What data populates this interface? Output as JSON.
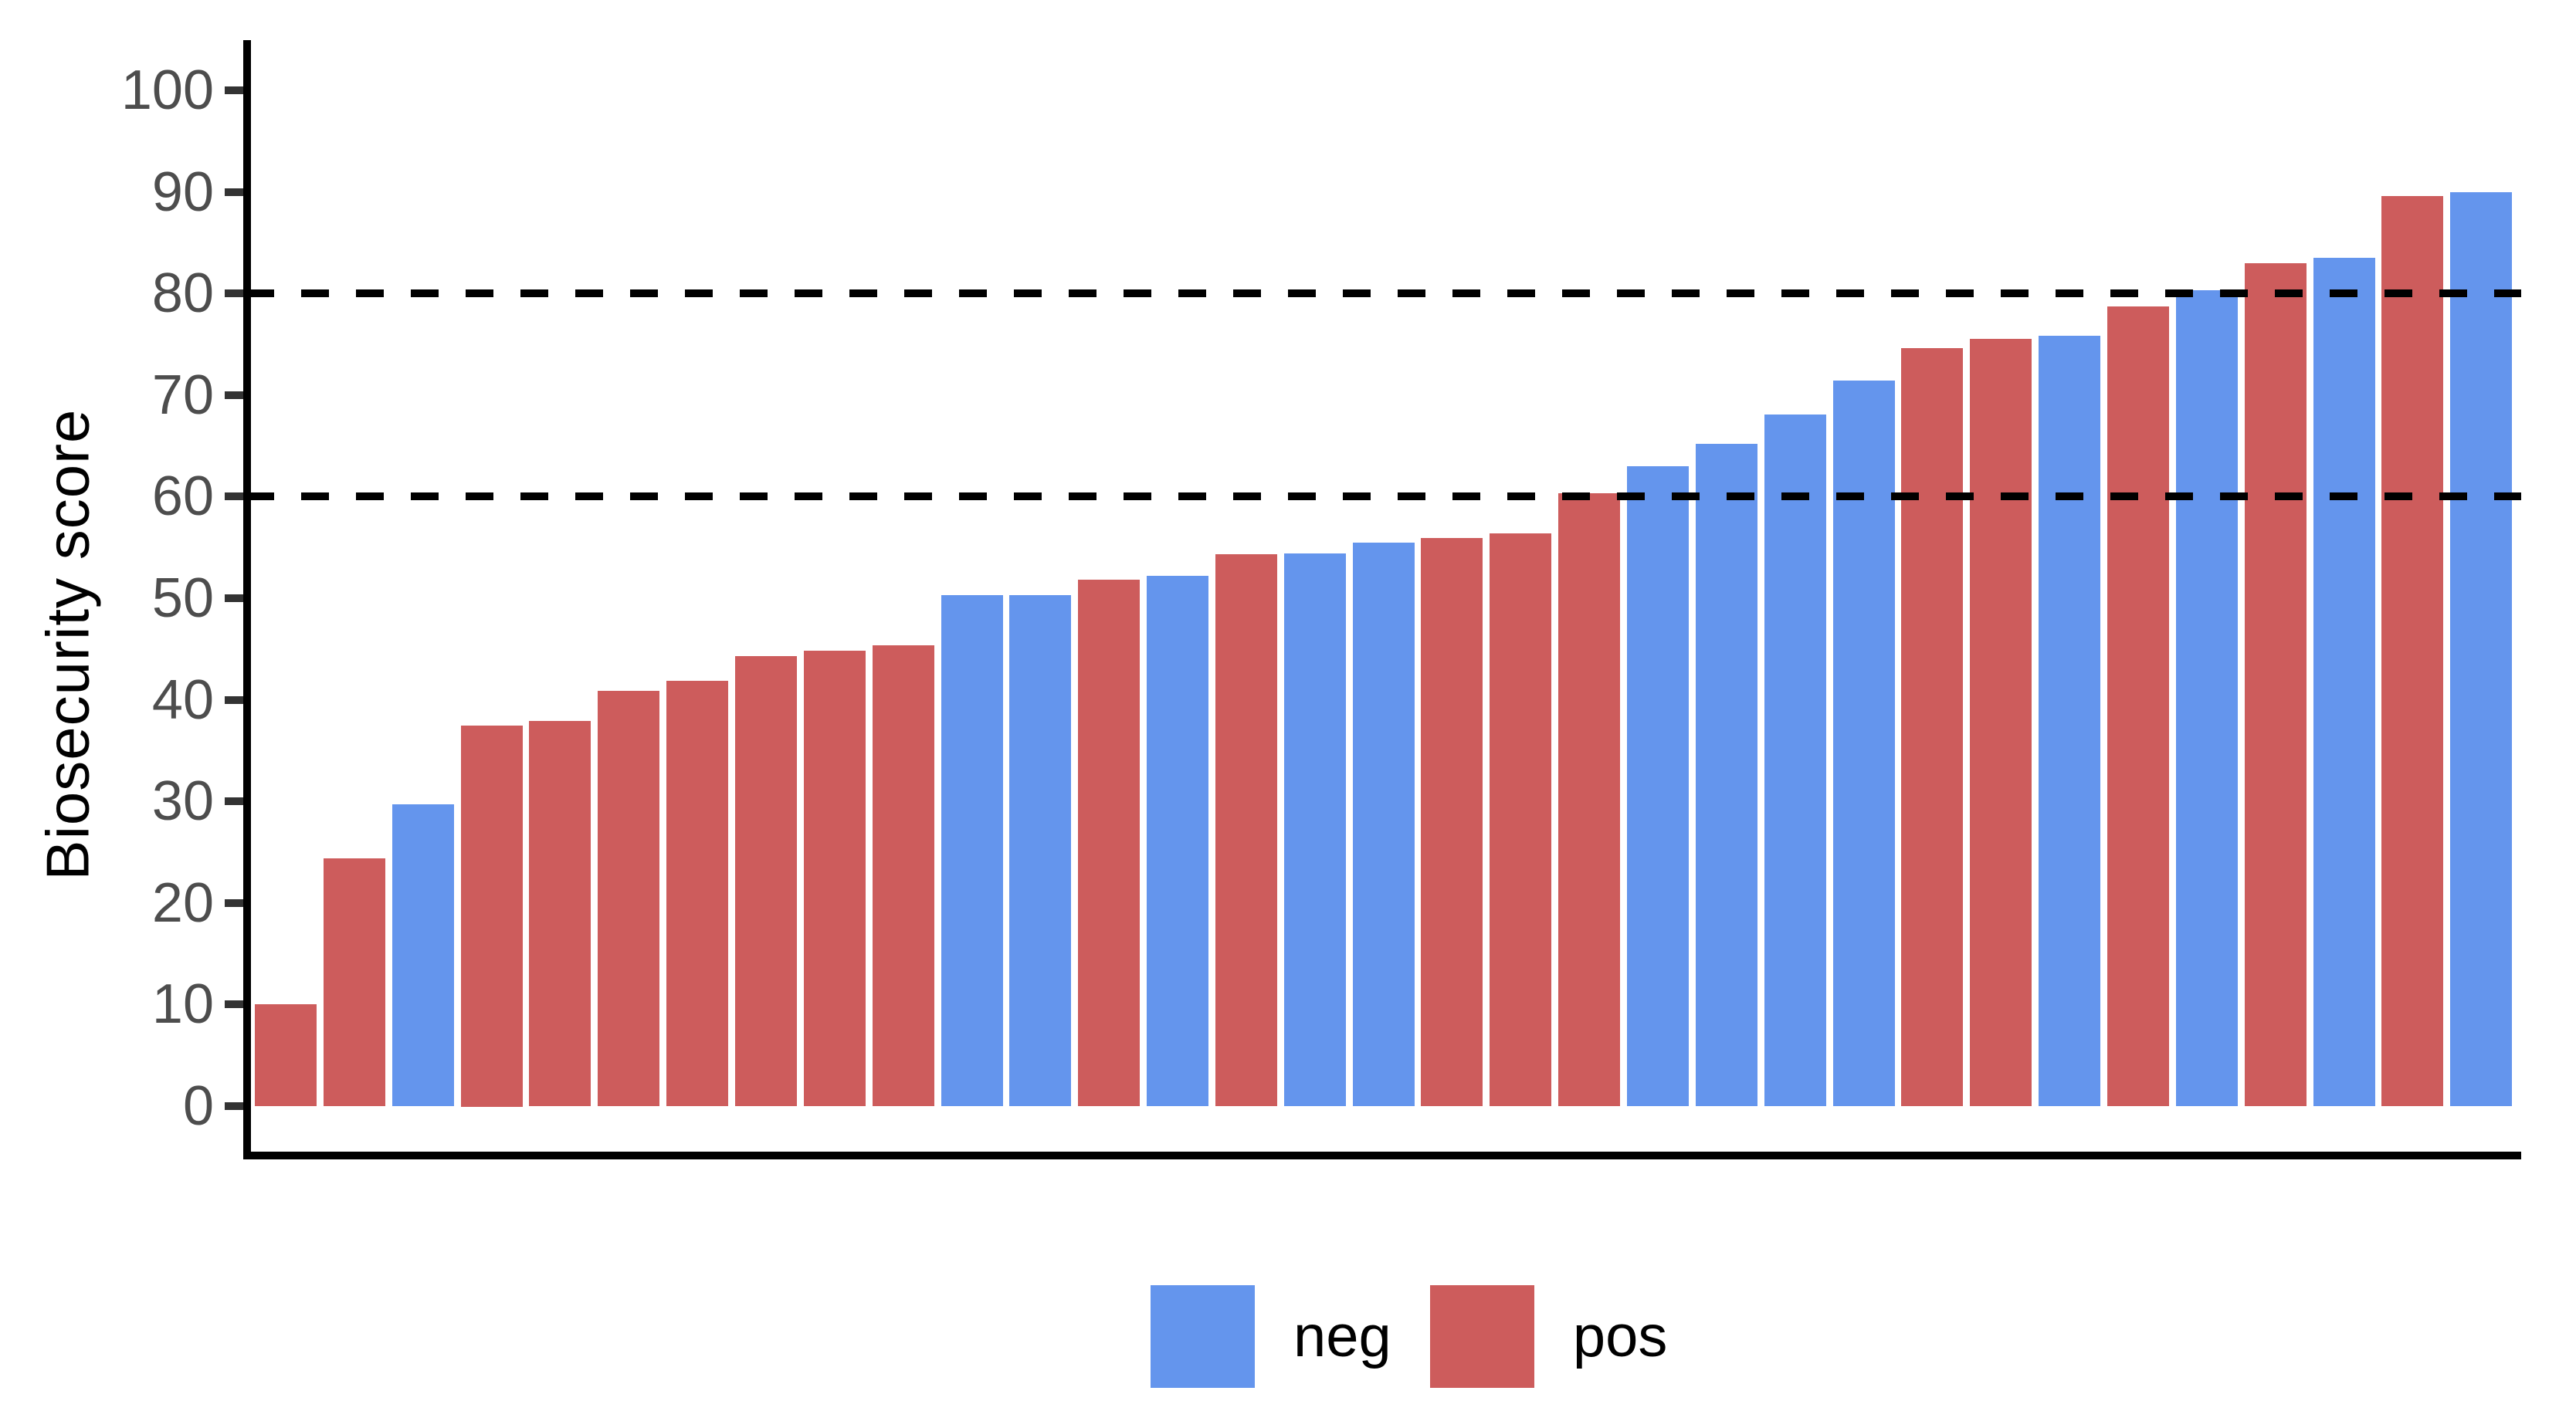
{
  "chart_data": {
    "type": "bar",
    "title": "",
    "xlabel": "",
    "ylabel": "Biosecurity score",
    "ylim": [
      0,
      100
    ],
    "yticks": [
      0,
      10,
      20,
      30,
      40,
      50,
      60,
      70,
      80,
      90,
      100
    ],
    "threshold_lines": [
      60,
      80
    ],
    "grid": false,
    "bar_order": "sorted ascending by value",
    "legend": {
      "position": "bottom-center",
      "entries": [
        {
          "label": "neg",
          "color": "#6495ED"
        },
        {
          "label": "pos",
          "color": "#CD5C5C"
        }
      ]
    },
    "bars": [
      {
        "group": "pos",
        "value": 10.0
      },
      {
        "group": "pos",
        "value": 24.4
      },
      {
        "group": "neg",
        "value": 29.7
      },
      {
        "group": "pos",
        "value": 37.5
      },
      {
        "group": "pos",
        "value": 37.9
      },
      {
        "group": "pos",
        "value": 40.9
      },
      {
        "group": "pos",
        "value": 41.9
      },
      {
        "group": "pos",
        "value": 44.3
      },
      {
        "group": "pos",
        "value": 44.8
      },
      {
        "group": "pos",
        "value": 45.4
      },
      {
        "group": "neg",
        "value": 50.3
      },
      {
        "group": "neg",
        "value": 50.3
      },
      {
        "group": "pos",
        "value": 51.8
      },
      {
        "group": "neg",
        "value": 52.2
      },
      {
        "group": "pos",
        "value": 54.3
      },
      {
        "group": "neg",
        "value": 54.4
      },
      {
        "group": "neg",
        "value": 55.5
      },
      {
        "group": "pos",
        "value": 55.9
      },
      {
        "group": "pos",
        "value": 56.4
      },
      {
        "group": "pos",
        "value": 60.3
      },
      {
        "group": "neg",
        "value": 63.0
      },
      {
        "group": "neg",
        "value": 65.2
      },
      {
        "group": "neg",
        "value": 68.1
      },
      {
        "group": "neg",
        "value": 71.4
      },
      {
        "group": "pos",
        "value": 74.6
      },
      {
        "group": "pos",
        "value": 75.5
      },
      {
        "group": "neg",
        "value": 75.8
      },
      {
        "group": "pos",
        "value": 78.7
      },
      {
        "group": "neg",
        "value": 80.3
      },
      {
        "group": "pos",
        "value": 83.0
      },
      {
        "group": "neg",
        "value": 83.5
      },
      {
        "group": "pos",
        "value": 89.6
      },
      {
        "group": "neg",
        "value": 90.0
      }
    ],
    "colors": {
      "neg": "#6495ED",
      "pos": "#CD5C5C",
      "axis_line": "#000000",
      "tick_text": "#4d4d4d",
      "threshold": "#000000"
    }
  }
}
